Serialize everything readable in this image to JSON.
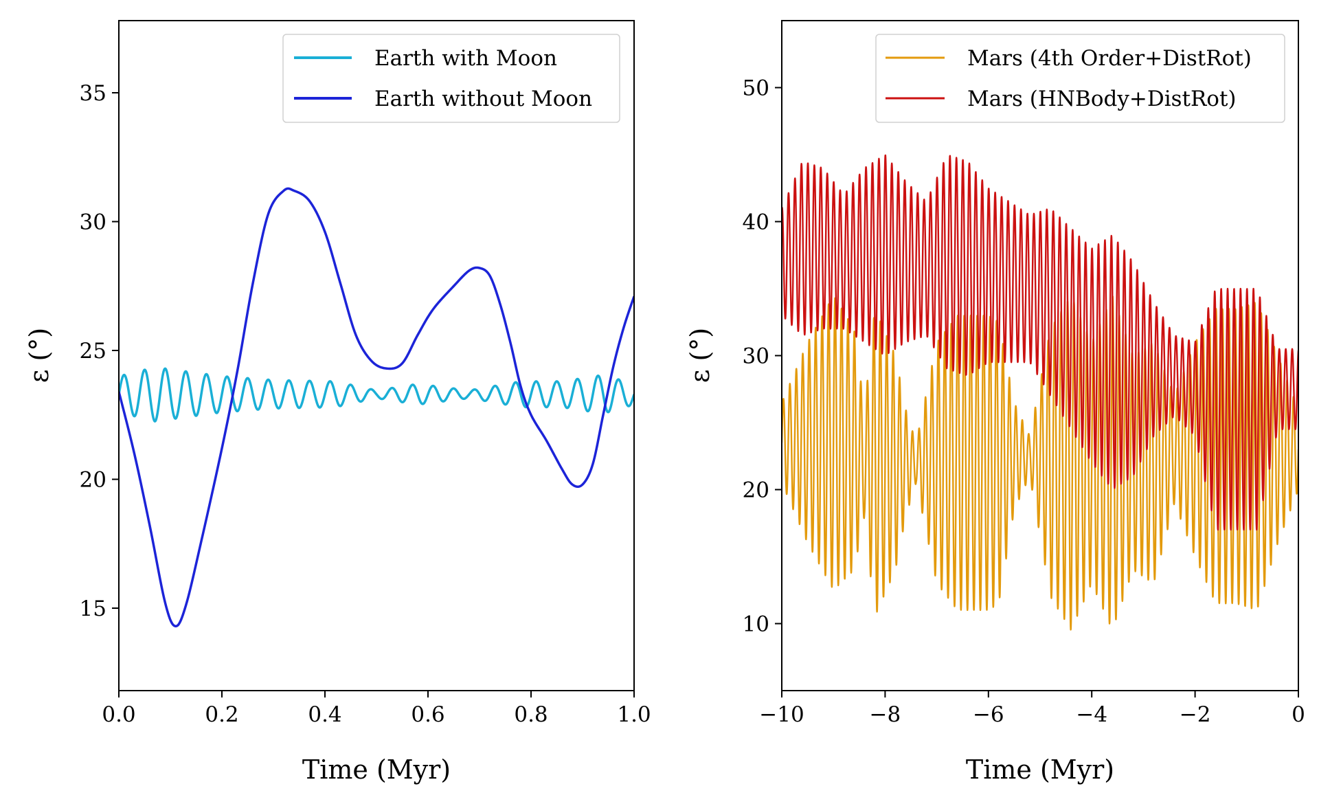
{
  "chart_data": [
    {
      "type": "line",
      "xlabel": "Time (Myr)",
      "ylabel": "ε (°)",
      "xlim": [
        0.0,
        1.0
      ],
      "ylim": [
        11.8,
        37.8
      ],
      "xticks": [
        0.0,
        0.2,
        0.4,
        0.6,
        0.8,
        1.0
      ],
      "xtick_labels": [
        "0.0",
        "0.2",
        "0.4",
        "0.6",
        "0.8",
        "1.0"
      ],
      "yticks": [
        15,
        20,
        25,
        30,
        35
      ],
      "ytick_labels": [
        "15",
        "20",
        "25",
        "30",
        "35"
      ],
      "legend_placement": "upper-right",
      "grid": false,
      "series": [
        {
          "name": "Earth with Moon",
          "color": "#1AAFD6",
          "kind": "oscillation",
          "period": 0.04,
          "envelope": [
            [
              0.0,
              23.3,
              0.7
            ],
            [
              0.07,
              23.3,
              1.05
            ],
            [
              0.2,
              23.3,
              0.7
            ],
            [
              0.3,
              23.3,
              0.55
            ],
            [
              0.42,
              23.3,
              0.5
            ],
            [
              0.5,
              23.3,
              0.15
            ],
            [
              0.58,
              23.3,
              0.4
            ],
            [
              0.68,
              23.3,
              0.15
            ],
            [
              0.78,
              23.3,
              0.5
            ],
            [
              0.86,
              23.3,
              0.5
            ],
            [
              0.94,
              23.3,
              0.75
            ],
            [
              1.0,
              23.3,
              0.4
            ]
          ]
        },
        {
          "name": "Earth without Moon",
          "color": "#1C24D8",
          "kind": "curve",
          "points": [
            [
              0.0,
              23.4
            ],
            [
              0.03,
              21.0
            ],
            [
              0.06,
              18.2
            ],
            [
              0.09,
              15.2
            ],
            [
              0.11,
              14.3
            ],
            [
              0.13,
              15.1
            ],
            [
              0.16,
              17.6
            ],
            [
              0.2,
              21.2
            ],
            [
              0.23,
              24.2
            ],
            [
              0.26,
              27.6
            ],
            [
              0.29,
              30.3
            ],
            [
              0.32,
              31.2
            ],
            [
              0.34,
              31.2
            ],
            [
              0.37,
              30.8
            ],
            [
              0.4,
              29.6
            ],
            [
              0.43,
              27.6
            ],
            [
              0.46,
              25.6
            ],
            [
              0.49,
              24.6
            ],
            [
              0.52,
              24.3
            ],
            [
              0.55,
              24.5
            ],
            [
              0.58,
              25.6
            ],
            [
              0.61,
              26.6
            ],
            [
              0.65,
              27.5
            ],
            [
              0.68,
              28.1
            ],
            [
              0.7,
              28.2
            ],
            [
              0.72,
              27.9
            ],
            [
              0.74,
              26.8
            ],
            [
              0.76,
              25.3
            ],
            [
              0.78,
              23.6
            ],
            [
              0.8,
              22.5
            ],
            [
              0.83,
              21.5
            ],
            [
              0.86,
              20.4
            ],
            [
              0.88,
              19.8
            ],
            [
              0.9,
              19.8
            ],
            [
              0.92,
              20.6
            ],
            [
              0.94,
              22.5
            ],
            [
              0.96,
              24.4
            ],
            [
              0.98,
              25.9
            ],
            [
              1.0,
              27.1
            ]
          ]
        }
      ]
    },
    {
      "type": "line",
      "xlabel": "Time (Myr)",
      "ylabel": "ε (°)",
      "xlim": [
        -10,
        0
      ],
      "ylim": [
        5,
        55
      ],
      "xticks": [
        -10,
        -8,
        -6,
        -4,
        -2,
        0
      ],
      "xtick_labels": [
        "−10",
        "−8",
        "−6",
        "−4",
        "−2",
        "0"
      ],
      "yticks": [
        10,
        20,
        30,
        40,
        50
      ],
      "ytick_labels": [
        "10",
        "20",
        "30",
        "40",
        "50"
      ],
      "legend_placement": "upper-right",
      "grid": false,
      "series": [
        {
          "name": "Mars (4th Order+DistRot)",
          "color": "#E39A0C",
          "kind": "oscillation",
          "period": 0.125,
          "envelope": [
            [
              -10.0,
              23.5,
              3.0
            ],
            [
              -9.5,
              23.5,
              7.5
            ],
            [
              -9.0,
              23.5,
              11.0
            ],
            [
              -8.6,
              23.0,
              9.0
            ],
            [
              -8.4,
              22.0,
              4.0
            ],
            [
              -8.2,
              22.0,
              11.5
            ],
            [
              -7.8,
              22.0,
              8.0
            ],
            [
              -7.6,
              22.0,
              4.0
            ],
            [
              -7.4,
              22.0,
              1.5
            ],
            [
              -7.0,
              22.0,
              9.0
            ],
            [
              -6.6,
              22.0,
              11.0
            ],
            [
              -6.0,
              22.0,
              11.0
            ],
            [
              -5.8,
              22.0,
              10.5
            ],
            [
              -5.5,
              22.5,
              4.0
            ],
            [
              -5.2,
              22.5,
              1.5
            ],
            [
              -4.8,
              22.0,
              10.0
            ],
            [
              -4.4,
              22.0,
              12.5
            ],
            [
              -4.0,
              22.0,
              9.0
            ],
            [
              -3.6,
              22.0,
              12.5
            ],
            [
              -3.2,
              22.0,
              8.0
            ],
            [
              -2.8,
              22.0,
              9.0
            ],
            [
              -2.4,
              23.0,
              4.0
            ],
            [
              -2.0,
              23.0,
              8.0
            ],
            [
              -1.6,
              22.5,
              11.0
            ],
            [
              -1.2,
              22.5,
              11.0
            ],
            [
              -0.8,
              22.5,
              11.5
            ],
            [
              -0.4,
              23.0,
              7.0
            ],
            [
              0.0,
              23.0,
              3.0
            ]
          ]
        },
        {
          "name": "Mars (HNBody+DistRot)",
          "color": "#CC1111",
          "kind": "oscillation",
          "period": 0.125,
          "envelope": [
            [
              -10.0,
              37.0,
              4.0
            ],
            [
              -9.6,
              38.0,
              6.5
            ],
            [
              -9.2,
              38.0,
              6.0
            ],
            [
              -8.8,
              37.0,
              5.0
            ],
            [
              -8.4,
              37.5,
              6.5
            ],
            [
              -8.0,
              37.5,
              7.5
            ],
            [
              -7.6,
              37.0,
              6.0
            ],
            [
              -7.2,
              36.5,
              5.0
            ],
            [
              -6.8,
              37.0,
              8.0
            ],
            [
              -6.4,
              36.5,
              8.0
            ],
            [
              -6.0,
              36.0,
              6.5
            ],
            [
              -5.6,
              35.5,
              6.0
            ],
            [
              -5.2,
              35.0,
              5.5
            ],
            [
              -4.8,
              34.0,
              7.0
            ],
            [
              -4.4,
              32.0,
              7.5
            ],
            [
              -4.0,
              30.0,
              8.0
            ],
            [
              -3.6,
              29.5,
              9.5
            ],
            [
              -3.2,
              29.0,
              8.0
            ],
            [
              -2.8,
              29.0,
              5.0
            ],
            [
              -2.4,
              28.5,
              3.0
            ],
            [
              -2.0,
              27.5,
              3.5
            ],
            [
              -1.6,
              26.0,
              9.0
            ],
            [
              -1.2,
              26.0,
              9.0
            ],
            [
              -0.8,
              26.0,
              9.0
            ],
            [
              -0.4,
              27.5,
              3.0
            ],
            [
              0.0,
              27.5,
              3.0
            ]
          ]
        }
      ]
    }
  ]
}
